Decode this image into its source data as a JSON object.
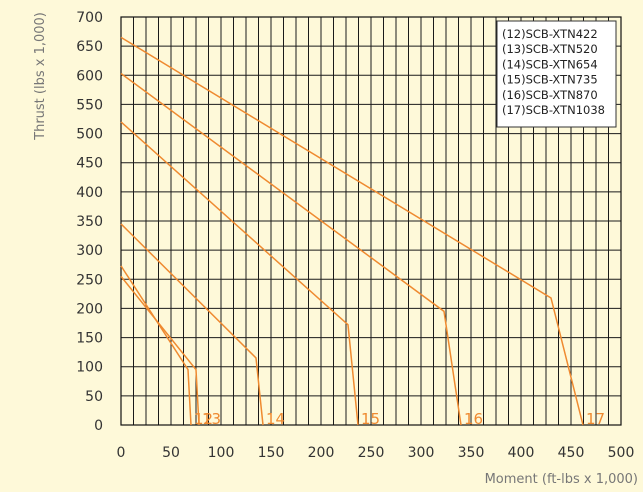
{
  "chart_data": {
    "type": "line",
    "xlabel": "Moment (ft-lbs x 1,000)",
    "ylabel": "Thrust (lbs x 1,000)",
    "xlim": [
      0,
      500
    ],
    "ylim": [
      0,
      700
    ],
    "x_ticks": [
      0,
      50,
      100,
      150,
      200,
      250,
      300,
      350,
      400,
      450,
      500
    ],
    "y_ticks": [
      0,
      50,
      100,
      150,
      200,
      250,
      300,
      350,
      400,
      450,
      500,
      550,
      600,
      650,
      700
    ],
    "grid": true,
    "legend_position": "top-right",
    "line_color": "#ef8a30",
    "series": [
      {
        "name": "(12)SCB-XTN422",
        "label": "12",
        "points": [
          [
            0,
            273
          ],
          [
            67,
            95
          ],
          [
            70,
            0
          ]
        ]
      },
      {
        "name": "(13)SCB-XTN520",
        "label": "13",
        "points": [
          [
            0,
            255
          ],
          [
            75,
            95
          ],
          [
            78,
            0
          ]
        ]
      },
      {
        "name": "(14)SCB-XTN654",
        "label": "14",
        "points": [
          [
            0,
            345
          ],
          [
            135,
            115
          ],
          [
            142,
            0
          ]
        ]
      },
      {
        "name": "(15)SCB-XTN735",
        "label": "15",
        "points": [
          [
            0,
            520
          ],
          [
            227,
            172
          ],
          [
            237,
            0
          ]
        ]
      },
      {
        "name": "(16)SCB-XTN870",
        "label": "16",
        "points": [
          [
            0,
            603
          ],
          [
            323,
            195
          ],
          [
            340,
            0
          ]
        ]
      },
      {
        "name": "(17)SCB-XTN1038",
        "label": "17",
        "points": [
          [
            0,
            665
          ],
          [
            430,
            218
          ],
          [
            462,
            0
          ]
        ]
      }
    ]
  }
}
